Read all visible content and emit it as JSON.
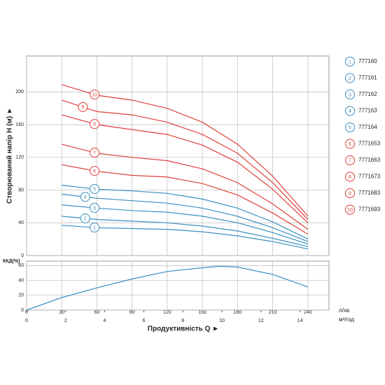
{
  "chart_data": [
    {
      "type": "line",
      "ylabel": "Створюваний напір H (м) ►",
      "x": [
        30,
        60,
        90,
        120,
        150,
        180,
        210,
        240
      ],
      "xlim": [
        0,
        258
      ],
      "ylim": [
        0,
        244
      ],
      "yticks": [
        0,
        40,
        80,
        120,
        160,
        200
      ],
      "grid": true,
      "legend": "right",
      "series": [
        {
          "name": "777160",
          "label": "1",
          "color": "#3a8fc0",
          "values": [
            37,
            34,
            33,
            32,
            29,
            24,
            17,
            8
          ]
        },
        {
          "name": "777161",
          "label": "2",
          "color": "#3a8fc0",
          "values": [
            48,
            44,
            42,
            40,
            36,
            30,
            21,
            11
          ]
        },
        {
          "name": "777162",
          "label": "3",
          "color": "#3a8fc0",
          "values": [
            62,
            58,
            55,
            53,
            48,
            40,
            28,
            14
          ]
        },
        {
          "name": "777163",
          "label": "4",
          "color": "#3a8fc0",
          "values": [
            75,
            70,
            67,
            64,
            58,
            48,
            34,
            17
          ]
        },
        {
          "name": "777164",
          "label": "5",
          "color": "#3a8fc0",
          "values": [
            86,
            81,
            79,
            76,
            69,
            58,
            41,
            20
          ]
        },
        {
          "name": "7771653",
          "label": "6",
          "color": "#e0403a",
          "values": [
            111,
            103,
            98,
            96,
            88,
            74,
            52,
            26
          ]
        },
        {
          "name": "7771663",
          "label": "7",
          "color": "#e0403a",
          "values": [
            136,
            125,
            120,
            116,
            106,
            89,
            63,
            32
          ]
        },
        {
          "name": "7771673",
          "label": "8",
          "color": "#e0403a",
          "values": [
            172,
            160,
            154,
            148,
            135,
            114,
            81,
            40
          ]
        },
        {
          "name": "7771683",
          "label": "9",
          "color": "#e0403a",
          "values": [
            190,
            176,
            172,
            163,
            148,
            125,
            89,
            44
          ]
        },
        {
          "name": "7771693",
          "label": "10",
          "color": "#e0403a",
          "values": [
            209,
            196,
            190,
            180,
            163,
            136,
            97,
            48
          ]
        }
      ]
    },
    {
      "type": "line",
      "ylabel": "ККД(%)",
      "xlabel": "Продуктивність  Q ►",
      "xunit": "л/хв",
      "x2unit": "м³/год",
      "x": [
        0,
        30,
        60,
        90,
        120,
        150,
        165,
        180,
        210,
        240
      ],
      "values": [
        0,
        17,
        30,
        42,
        52,
        57,
        59,
        58,
        48,
        31
      ],
      "color": "#3a8fc0",
      "xlim": [
        0,
        258
      ],
      "xticks": [
        0,
        30,
        60,
        90,
        120,
        150,
        180,
        210,
        240
      ],
      "x2lim": [
        0,
        15.48
      ],
      "x2ticks": [
        0,
        2,
        4,
        6,
        8,
        10,
        12,
        14
      ],
      "ylim": [
        0,
        66
      ],
      "yticks": [
        0,
        20,
        40,
        60
      ],
      "grid": true
    }
  ]
}
